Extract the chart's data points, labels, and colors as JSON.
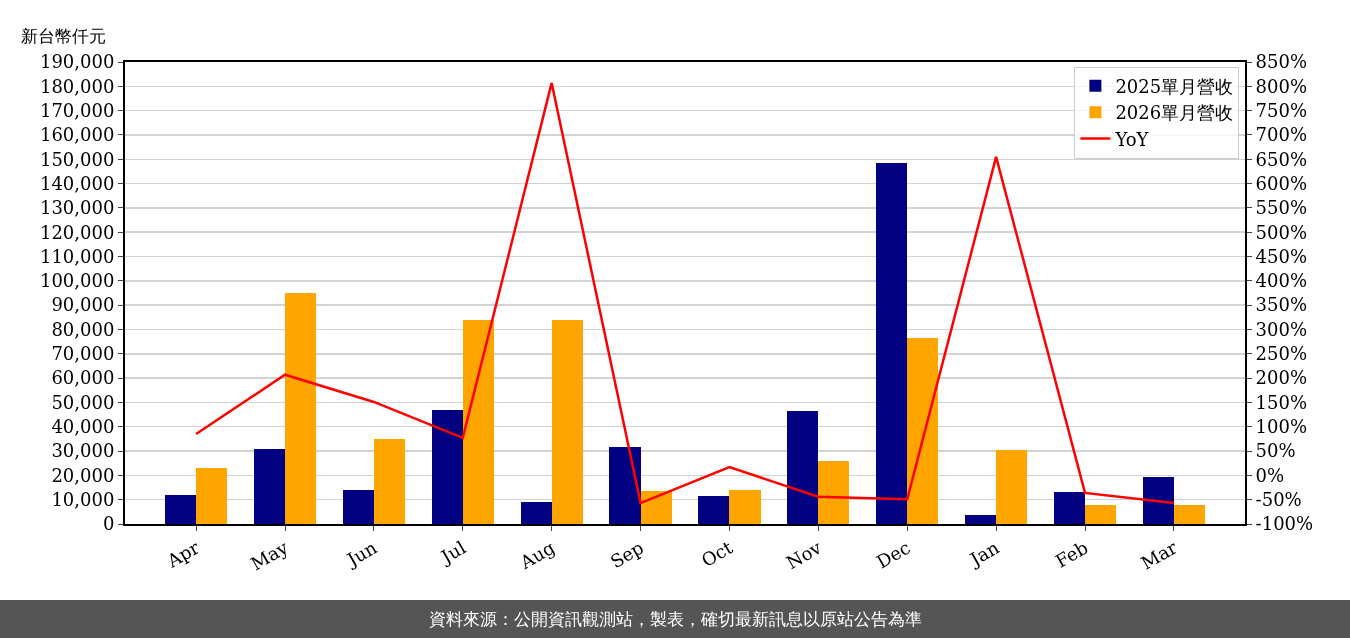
{
  "chart_data": {
    "type": "bar",
    "ylabel": "新台幣仟元",
    "categories": [
      "Apr",
      "May",
      "Jun",
      "Jul",
      "Aug",
      "Sep",
      "Oct",
      "Nov",
      "Dec",
      "Jan",
      "Feb",
      "Mar"
    ],
    "series": [
      {
        "name": "2025單月營收",
        "color": "#000080",
        "values": [
          12000,
          31000,
          14000,
          47000,
          9000,
          31500,
          11500,
          46500,
          148500,
          3500,
          13000,
          19500
        ]
      },
      {
        "name": "2026單月營收",
        "color": "#ffa500",
        "values": [
          23000,
          95000,
          35000,
          84000,
          84000,
          13500,
          14000,
          26000,
          76500,
          30500,
          8000,
          8000
        ]
      },
      {
        "name": "YoY",
        "type": "line",
        "axis": "y2",
        "color": "#ff0000",
        "line_style": "solid",
        "values": [
          85,
          207,
          151,
          77,
          807,
          -57,
          17,
          -44,
          -49,
          655,
          -36,
          -57
        ]
      }
    ],
    "ylim": [
      0,
      190000
    ],
    "yticks": [
      {
        "value": 0,
        "label": "0"
      },
      {
        "value": 10000,
        "label": "10,000"
      },
      {
        "value": 20000,
        "label": "20,000"
      },
      {
        "value": 30000,
        "label": "30,000"
      },
      {
        "value": 40000,
        "label": "40,000"
      },
      {
        "value": 50000,
        "label": "50,000"
      },
      {
        "value": 60000,
        "label": "60,000"
      },
      {
        "value": 70000,
        "label": "70,000"
      },
      {
        "value": 80000,
        "label": "80,000"
      },
      {
        "value": 90000,
        "label": "90,000"
      },
      {
        "value": 100000,
        "label": "100,000"
      },
      {
        "value": 110000,
        "label": "110,000"
      },
      {
        "value": 120000,
        "label": "120,000"
      },
      {
        "value": 130000,
        "label": "130,000"
      },
      {
        "value": 140000,
        "label": "140,000"
      },
      {
        "value": 150000,
        "label": "150,000"
      },
      {
        "value": 160000,
        "label": "160,000"
      },
      {
        "value": 170000,
        "label": "170,000"
      },
      {
        "value": 180000,
        "label": "180,000"
      },
      {
        "value": 190000,
        "label": "190,000"
      }
    ],
    "y2lim": [
      -100,
      850
    ],
    "y2ticks": [
      {
        "value": -100,
        "label": "-100%"
      },
      {
        "value": -50,
        "label": "-50%"
      },
      {
        "value": 0,
        "label": "0%"
      },
      {
        "value": 50,
        "label": "50%"
      },
      {
        "value": 100,
        "label": "100%"
      },
      {
        "value": 150,
        "label": "150%"
      },
      {
        "value": 200,
        "label": "200%"
      },
      {
        "value": 250,
        "label": "250%"
      },
      {
        "value": 300,
        "label": "300%"
      },
      {
        "value": 350,
        "label": "350%"
      },
      {
        "value": 400,
        "label": "400%"
      },
      {
        "value": 450,
        "label": "450%"
      },
      {
        "value": 500,
        "label": "500%"
      },
      {
        "value": 550,
        "label": "550%"
      },
      {
        "value": 600,
        "label": "600%"
      },
      {
        "value": 650,
        "label": "650%"
      },
      {
        "value": 700,
        "label": "700%"
      },
      {
        "value": 750,
        "label": "750%"
      },
      {
        "value": 800,
        "label": "800%"
      },
      {
        "value": 850,
        "label": "850%"
      }
    ],
    "grid": "y",
    "legend": "top right",
    "marker": "none",
    "annotations": [
      "資料來源：公開資訊觀測站，製表，確切最新訊息以原站公告為準"
    ]
  }
}
